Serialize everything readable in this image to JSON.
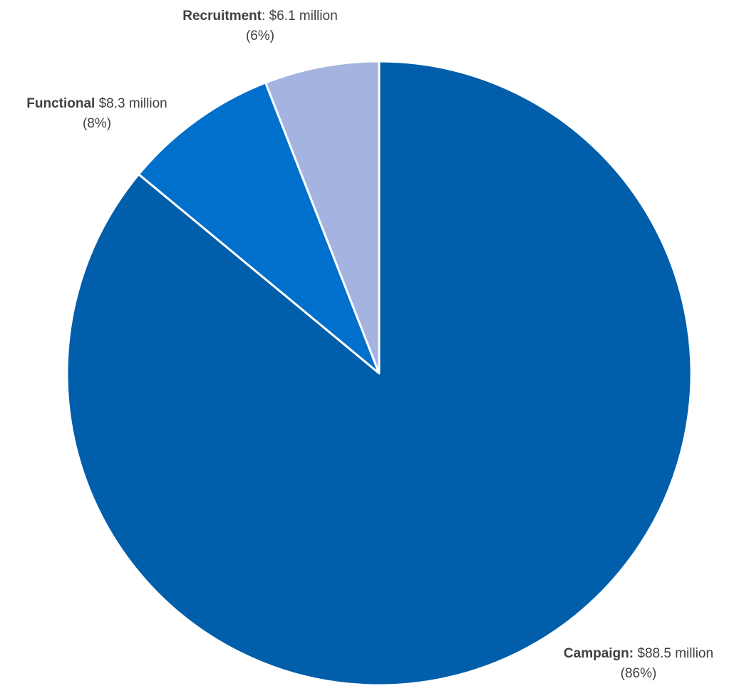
{
  "chart_data": {
    "type": "pie",
    "slices": [
      {
        "category": "Campaign",
        "separator": ":",
        "amount_text": "$88.5 million",
        "percent_text": "(86%)",
        "value": 88.5,
        "percent": 86,
        "color": "#005EAB"
      },
      {
        "category": "Functional",
        "separator": "",
        "amount_text": "$8.3 million",
        "percent_text": "(8%)",
        "value": 8.3,
        "percent": 8,
        "color": "#0070CC"
      },
      {
        "category": "Recruitment",
        "separator": ":",
        "amount_text": "$6.1 million",
        "percent_text": "(6%)",
        "value": 6.1,
        "percent": 6,
        "color": "#A4B3E0"
      }
    ],
    "start": "12 o'clock",
    "direction": "clockwise",
    "legend": "none"
  }
}
